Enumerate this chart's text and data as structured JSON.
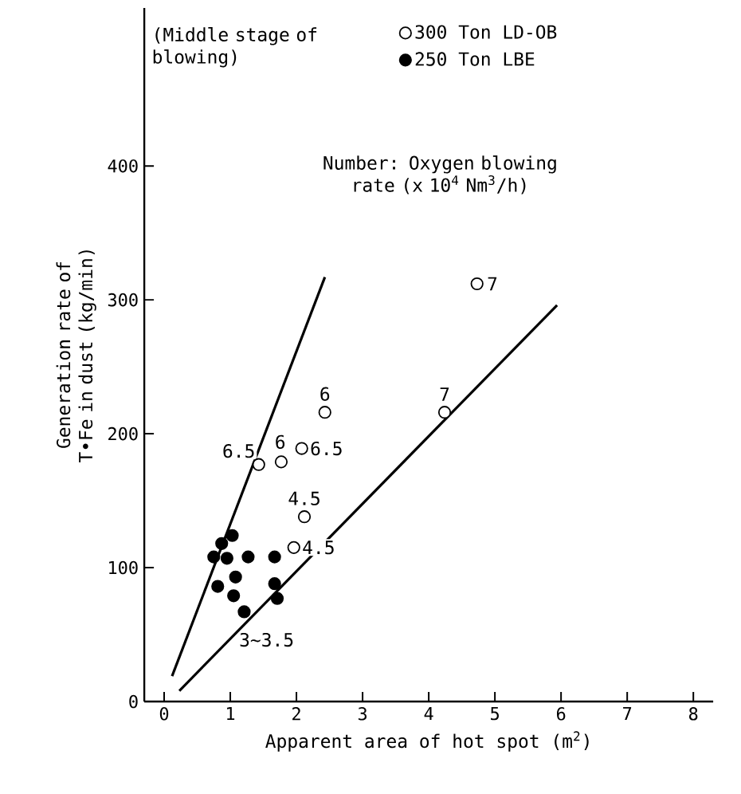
{
  "chart_data": {
    "type": "scatter",
    "xlabel": "Apparent area of hot spot (m$^{2}$)",
    "ylabel": "Generation rate of T•Fe in dust (kg/min)",
    "xlim": [
      -0.3,
      8.3
    ],
    "ylim": [
      0,
      518
    ],
    "xticks": [
      0,
      1,
      2,
      3,
      4,
      5,
      6,
      7,
      8
    ],
    "yticks": [
      0,
      100,
      200,
      300,
      400
    ],
    "grid": false,
    "legend": "top",
    "series": [
      {
        "name": "300 Ton LD-OB",
        "color": "#ffffff",
        "x": [
          1.43,
          1.77,
          2.08,
          2.43,
          2.12,
          1.96,
          4.24,
          4.73
        ],
        "values": [
          177,
          179,
          189,
          216,
          138,
          115,
          216,
          312
        ]
      },
      {
        "name": "250 Ton LBE",
        "color": "#000000",
        "x": [
          1.03,
          0.87,
          0.75,
          0.95,
          1.27,
          1.67,
          0.81,
          1.08,
          1.05,
          1.21,
          1.67,
          1.71
        ],
        "values": [
          124,
          118,
          108,
          107,
          108,
          108,
          86,
          93,
          79,
          67,
          88,
          77
        ]
      },
      {
        "type": "line",
        "color": "#000000",
        "x": [
          0.12,
          2.43
        ],
        "values": [
          19,
          317
        ]
      },
      {
        "type": "line",
        "color": "#000000",
        "x": [
          0.23,
          5.94
        ],
        "values": [
          8,
          296
        ]
      }
    ],
    "annotations": [
      "(Middle stage of blowing)",
      "Number: Oxygen blowing rate (x 10$^{4}$ Nm$^{3}$/h)",
      {
        "text": "7",
        "x": 4.73,
        "y": 312
      },
      {
        "text": "7",
        "x": 4.24,
        "y": 216
      },
      {
        "text": "6",
        "x": 2.43,
        "y": 216
      },
      {
        "text": "6.5",
        "x": 1.43,
        "y": 177
      },
      {
        "text": "6",
        "x": 1.77,
        "y": 179
      },
      {
        "text": "6.5",
        "x": 2.08,
        "y": 189
      },
      {
        "text": "4.5",
        "x": 2.12,
        "y": 138
      },
      {
        "text": "4.5",
        "x": 1.96,
        "y": 115
      },
      "3~3.5"
    ]
  }
}
